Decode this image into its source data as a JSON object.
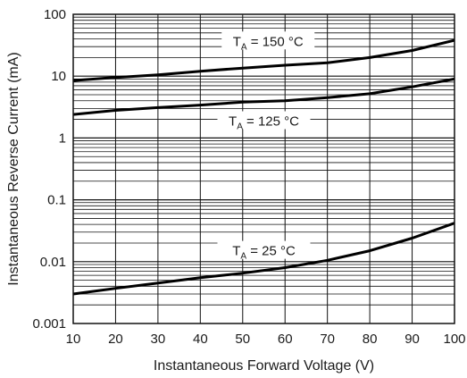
{
  "chart_data": {
    "type": "line",
    "xlabel": "Instantaneous Forward Voltage (V)",
    "ylabel": "Instantaneous Reverse Current (mA)",
    "xlim": [
      10,
      100
    ],
    "ylim": [
      0.001,
      100
    ],
    "yscale": "log",
    "grid": true,
    "x_ticks": [
      "10",
      "20",
      "30",
      "40",
      "50",
      "60",
      "70",
      "80",
      "90",
      "100"
    ],
    "y_ticks": [
      "0.001",
      "0.01",
      "0.1",
      "1",
      "10",
      "100"
    ],
    "series": [
      {
        "name": "150 °C",
        "label_prefix": "T",
        "label_sub": "A",
        "label_rest": " = 150 °C",
        "x": [
          10,
          20,
          30,
          40,
          50,
          60,
          70,
          80,
          90,
          100
        ],
        "y": [
          8.5,
          9.5,
          10.5,
          12,
          13.5,
          15,
          16.5,
          20,
          26,
          38
        ]
      },
      {
        "name": "125 °C",
        "label_prefix": "T",
        "label_sub": "A",
        "label_rest": " = 125 °C",
        "x": [
          10,
          20,
          30,
          40,
          50,
          60,
          70,
          80,
          90,
          100
        ],
        "y": [
          2.4,
          2.8,
          3.1,
          3.4,
          3.8,
          4.0,
          4.5,
          5.2,
          6.7,
          9.0
        ]
      },
      {
        "name": "25 °C",
        "label_prefix": "T",
        "label_sub": "A",
        "label_rest": " = 25 °C",
        "x": [
          10,
          20,
          30,
          40,
          50,
          60,
          70,
          80,
          90,
          100
        ],
        "y": [
          0.003,
          0.0037,
          0.0045,
          0.0055,
          0.0065,
          0.008,
          0.0105,
          0.015,
          0.024,
          0.042
        ]
      }
    ]
  }
}
